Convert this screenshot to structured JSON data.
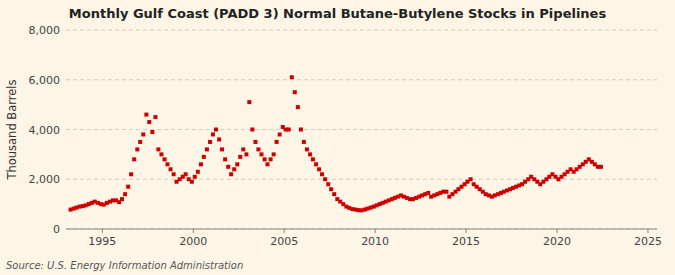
{
  "chart_data": {
    "type": "scatter",
    "title": "Monthly Gulf Coast (PADD 3) Normal Butane-Butylene Stocks in Pipelines",
    "y_label": "Thousand Barrels",
    "source": "Source: U.S. Energy Information Administration",
    "color": "#cc0000",
    "marker": "square",
    "grid": true,
    "xlim": [
      1993.0,
      2025.5
    ],
    "xticks": [
      1995,
      2000,
      2005,
      2010,
      2015,
      2020,
      2025
    ],
    "ylim": [
      0,
      8000
    ],
    "yticks": [
      0,
      {
        "value": 2000,
        "label": "2,000"
      },
      {
        "value": 4000,
        "label": "4,000"
      },
      {
        "value": 6000,
        "label": "6,000"
      },
      {
        "value": 8000,
        "label": "8,000"
      }
    ],
    "x": [
      1993.25,
      1993.42,
      1993.58,
      1993.75,
      1993.92,
      1994.08,
      1994.25,
      1994.42,
      1994.58,
      1994.75,
      1994.92,
      1995.08,
      1995.25,
      1995.42,
      1995.58,
      1995.75,
      1995.92,
      1996.08,
      1996.25,
      1996.42,
      1996.58,
      1996.75,
      1996.92,
      1997.08,
      1997.25,
      1997.42,
      1997.58,
      1997.75,
      1997.92,
      1998.08,
      1998.25,
      1998.42,
      1998.58,
      1998.75,
      1998.92,
      1999.08,
      1999.25,
      1999.42,
      1999.58,
      1999.75,
      1999.92,
      2000.08,
      2000.25,
      2000.42,
      2000.58,
      2000.75,
      2000.92,
      2001.08,
      2001.25,
      2001.42,
      2001.58,
      2001.75,
      2001.92,
      2002.08,
      2002.25,
      2002.42,
      2002.58,
      2002.75,
      2002.92,
      2003.08,
      2003.25,
      2003.42,
      2003.58,
      2003.75,
      2003.92,
      2004.08,
      2004.25,
      2004.42,
      2004.58,
      2004.75,
      2004.92,
      2005.08,
      2005.25,
      2005.42,
      2005.58,
      2005.75,
      2005.92,
      2006.08,
      2006.25,
      2006.42,
      2006.58,
      2006.75,
      2006.92,
      2007.08,
      2007.25,
      2007.42,
      2007.58,
      2007.75,
      2007.92,
      2008.08,
      2008.25,
      2008.42,
      2008.58,
      2008.75,
      2008.92,
      2009.08,
      2009.25,
      2009.42,
      2009.58,
      2009.75,
      2009.92,
      2010.08,
      2010.25,
      2010.42,
      2010.58,
      2010.75,
      2010.92,
      2011.08,
      2011.25,
      2011.42,
      2011.58,
      2011.75,
      2011.92,
      2012.08,
      2012.25,
      2012.42,
      2012.58,
      2012.75,
      2012.92,
      2013.08,
      2013.25,
      2013.42,
      2013.58,
      2013.75,
      2013.92,
      2014.08,
      2014.25,
      2014.42,
      2014.58,
      2014.75,
      2014.92,
      2015.08,
      2015.25,
      2015.42,
      2015.58,
      2015.75,
      2015.92,
      2016.08,
      2016.25,
      2016.42,
      2016.58,
      2016.75,
      2016.92,
      2017.08,
      2017.25,
      2017.42,
      2017.58,
      2017.75,
      2017.92,
      2018.08,
      2018.25,
      2018.42,
      2018.58,
      2018.75,
      2018.92,
      2019.08,
      2019.25,
      2019.42,
      2019.58,
      2019.75,
      2019.92,
      2020.08,
      2020.25,
      2020.42,
      2020.58,
      2020.75,
      2020.92,
      2021.08,
      2021.25,
      2021.42,
      2021.58,
      2021.75,
      2021.92,
      2022.08,
      2022.25,
      2022.42
    ],
    "values": [
      780,
      820,
      860,
      900,
      920,
      950,
      1000,
      1050,
      1100,
      1050,
      1000,
      980,
      1050,
      1100,
      1150,
      1150,
      1080,
      1200,
      1400,
      1700,
      2200,
      2800,
      3200,
      3500,
      3800,
      4600,
      4300,
      3900,
      4500,
      3200,
      3000,
      2800,
      2600,
      2400,
      2200,
      1900,
      2000,
      2100,
      2200,
      2000,
      1900,
      2100,
      2300,
      2600,
      2900,
      3200,
      3500,
      3800,
      4000,
      3600,
      3200,
      2800,
      2500,
      2200,
      2400,
      2600,
      2900,
      3200,
      3000,
      5100,
      4000,
      3500,
      3200,
      3000,
      2800,
      2600,
      2800,
      3000,
      3500,
      3800,
      4100,
      4000,
      4000,
      6100,
      5500,
      4900,
      4000,
      3500,
      3200,
      3000,
      2800,
      2600,
      2400,
      2200,
      2000,
      1800,
      1600,
      1400,
      1200,
      1100,
      1000,
      900,
      850,
      800,
      780,
      760,
      750,
      780,
      820,
      860,
      900,
      950,
      1000,
      1050,
      1100,
      1150,
      1200,
      1250,
      1300,
      1350,
      1300,
      1250,
      1200,
      1200,
      1250,
      1300,
      1350,
      1400,
      1450,
      1300,
      1350,
      1400,
      1450,
      1500,
      1500,
      1300,
      1400,
      1500,
      1600,
      1700,
      1800,
      1900,
      2000,
      1800,
      1700,
      1600,
      1500,
      1400,
      1350,
      1300,
      1350,
      1400,
      1450,
      1500,
      1550,
      1600,
      1650,
      1700,
      1750,
      1800,
      1900,
      2000,
      2100,
      2000,
      1900,
      1800,
      1900,
      2000,
      2100,
      2200,
      2100,
      2000,
      2100,
      2200,
      2300,
      2400,
      2300,
      2400,
      2500,
      2600,
      2700,
      2800,
      2700,
      2600,
      2500,
      2500
    ]
  }
}
